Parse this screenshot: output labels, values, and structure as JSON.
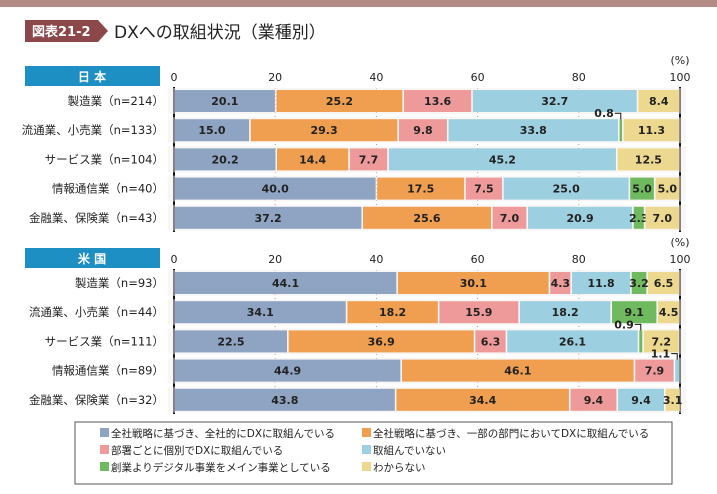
{
  "figure": {
    "badge": "図表21-2",
    "title": "DXへの取組状況（業種別）"
  },
  "colors": {
    "series": [
      "#8ea4c2",
      "#ef9f4f",
      "#ef9a9a",
      "#9ccfe0",
      "#6fb95e",
      "#ecd88e"
    ],
    "header": "#1e8fc2",
    "badge": "#8b4749",
    "topbar": "#b38c88"
  },
  "chart_data": {
    "type": "bar",
    "orientation": "horizontal-stacked",
    "unit_label": "(%)",
    "xlim": [
      0,
      100
    ],
    "ticks": [
      "0",
      "20",
      "40",
      "60",
      "80",
      "100"
    ],
    "legend": [
      "全社戦略に基づき、全社的にDXに取組んでいる",
      "全社戦略に基づき、一部の部門においてDXに取組んでいる",
      "部署ごとに個別でDXに取組んでいる",
      "取組んでいない",
      "創業よりデジタル事業をメイン事業としている",
      "わからない"
    ],
    "panels": [
      {
        "name": "日 本",
        "categories": [
          "製造業（n=214）",
          "流通業、小売業（n=133）",
          "サービス業（n=104）",
          "情報通信業（n=40）",
          "金融業、保険業（n=43）"
        ],
        "values": [
          [
            20.1,
            25.2,
            13.6,
            32.7,
            0,
            8.4
          ],
          [
            15.0,
            29.3,
            9.8,
            33.8,
            0.8,
            11.3
          ],
          [
            20.2,
            14.4,
            7.7,
            45.2,
            0,
            12.5
          ],
          [
            40.0,
            17.5,
            7.5,
            25.0,
            5.0,
            5.0
          ],
          [
            37.2,
            25.6,
            7.0,
            20.9,
            2.3,
            7.0
          ]
        ]
      },
      {
        "name": "米 国",
        "categories": [
          "製造業（n=93）",
          "流通業、小売業（n=44）",
          "サービス業（n=111）",
          "情報通信業（n=89）",
          "金融業、保険業（n=32）"
        ],
        "values": [
          [
            44.1,
            30.1,
            4.3,
            11.8,
            3.2,
            6.5
          ],
          [
            34.1,
            18.2,
            15.9,
            18.2,
            9.1,
            4.5
          ],
          [
            22.5,
            36.9,
            6.3,
            26.1,
            0.9,
            7.2
          ],
          [
            44.9,
            46.1,
            7.9,
            1.1,
            0,
            0
          ],
          [
            43.8,
            34.4,
            9.4,
            9.4,
            0,
            3.1
          ]
        ]
      }
    ]
  }
}
